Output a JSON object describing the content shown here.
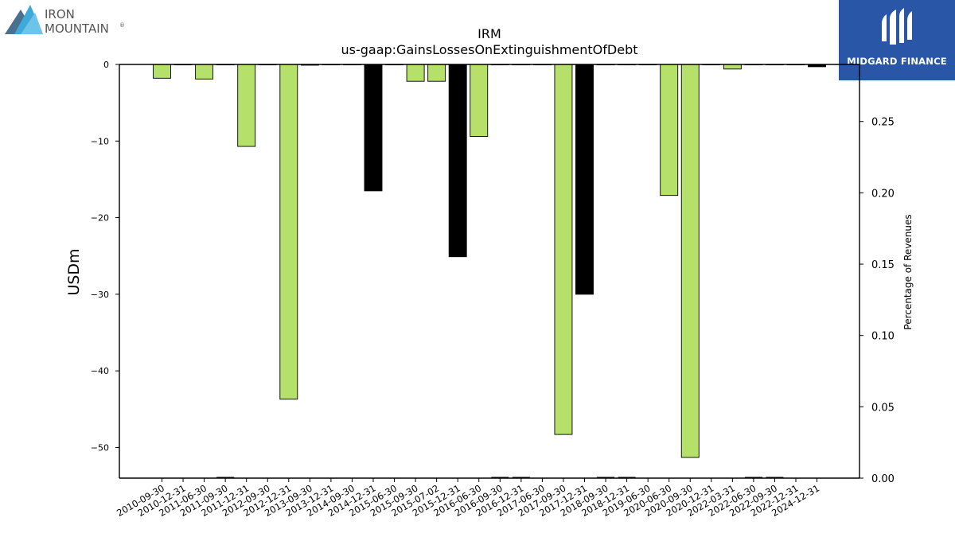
{
  "branding": {
    "left_logo_line1": "IRON",
    "left_logo_line2": "MOUNTAIN",
    "left_logo_mark": "®",
    "right_logo_text": "MIDGARD FINANCE"
  },
  "chart_data": {
    "type": "bar",
    "title": "IRM",
    "subtitle": "us-gaap:GainsLossesOnExtinguishmentOfDebt",
    "ylabel": "USDm",
    "y2label": "Percentage of Revenues",
    "ylim": [
      -54,
      0
    ],
    "y2lim": [
      0,
      0.29
    ],
    "yticks": [
      0,
      -10,
      -20,
      -30,
      -40,
      -50
    ],
    "ytick_labels": [
      "0",
      "−10",
      "−20",
      "−30",
      "−40",
      "−50"
    ],
    "y2ticks": [
      0,
      0.05,
      0.1,
      0.15,
      0.2,
      0.25
    ],
    "y2tick_labels": [
      "0.00",
      "0.05",
      "0.10",
      "0.15",
      "0.20",
      "0.25"
    ],
    "categories": [
      "2010-09-30",
      "2010-12-31",
      "2011-06-30",
      "2011-09-30",
      "2011-12-31",
      "2012-09-30",
      "2012-12-31",
      "2013-09-30",
      "2013-12-31",
      "2014-09-30",
      "2014-12-31",
      "2015-06-30",
      "2015-09-30",
      "2015-07-02",
      "2015-12-31",
      "2016-06-30",
      "2016-09-30",
      "2016-12-31",
      "2017-06-30",
      "2017-09-30",
      "2017-12-31",
      "2018-09-30",
      "2018-12-31",
      "2019-06-30",
      "2020-06-30",
      "2020-09-30",
      "2020-12-31",
      "2022-03-31",
      "2022-06-30",
      "2022-09-30",
      "2022-12-31",
      "2024-12-31"
    ],
    "series": [
      {
        "values": [
          -1.8,
          0,
          -1.9,
          0,
          -10.7,
          0,
          -43.7,
          -0.1,
          0,
          0,
          -16.5,
          0,
          -2.2,
          -2.2,
          -25.1,
          -9.4,
          0,
          0,
          0,
          -48.3,
          -30.0,
          0,
          0,
          0,
          -17.1,
          -51.3,
          0,
          -0.6,
          0,
          0,
          0,
          -0.3
        ],
        "colors": [
          "#b5e06a",
          "#b5e06a",
          "#b5e06a",
          "#000000",
          "#b5e06a",
          "#b5e06a",
          "#b5e06a",
          "#000000",
          "#000000",
          "#000000",
          "#000000",
          "#b5e06a",
          "#b5e06a",
          "#b5e06a",
          "#000000",
          "#b5e06a",
          "#000000",
          "#000000",
          "#000000",
          "#b5e06a",
          "#000000",
          "#000000",
          "#000000",
          "#000000",
          "#b5e06a",
          "#b5e06a",
          "#000000",
          "#b5e06a",
          "#000000",
          "#000000",
          "#000000",
          "#000000"
        ]
      }
    ],
    "colors": {
      "positive_bar": "#b5e06a",
      "other_bar": "#000000",
      "axis": "#000000"
    },
    "grid": false,
    "legend": "none"
  }
}
